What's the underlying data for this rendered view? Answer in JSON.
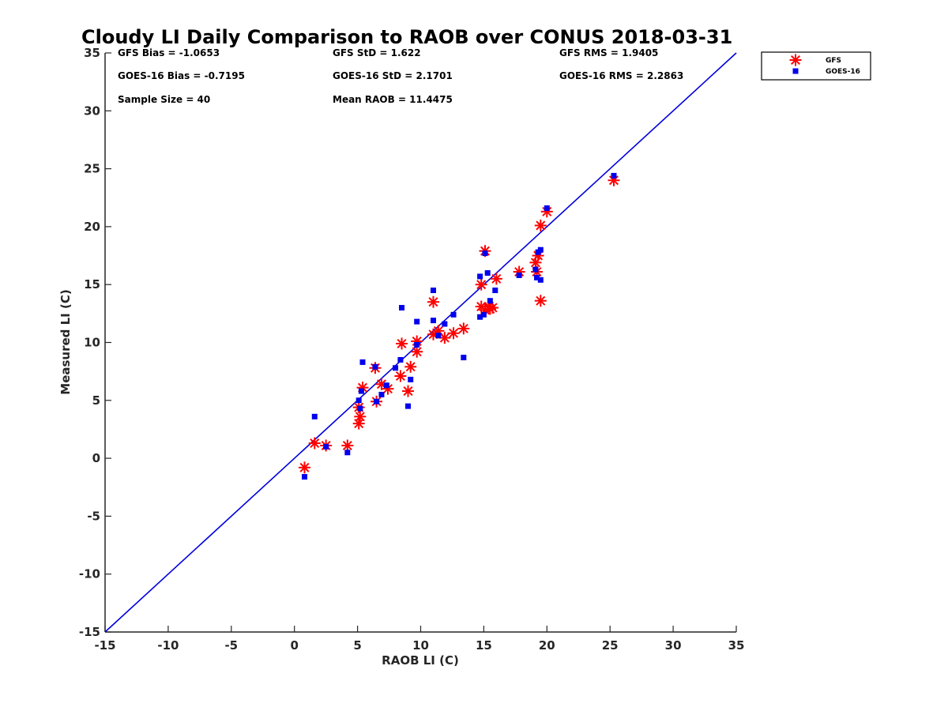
{
  "chart_data": {
    "type": "scatter",
    "title": "Cloudy LI Daily Comparison to RAOB over CONUS 2018-03-31",
    "xlabel": "RAOB LI (C)",
    "ylabel": "Measured LI (C)",
    "xlim": [
      -15,
      35
    ],
    "ylim": [
      -15,
      35
    ],
    "xticks": [
      "-15",
      "-10",
      "-5",
      "0",
      "5",
      "10",
      "15",
      "20",
      "25",
      "30",
      "35"
    ],
    "yticks": [
      "-15",
      "-10",
      "-5",
      "0",
      "5",
      "10",
      "15",
      "20",
      "25",
      "30",
      "35"
    ],
    "grid": false,
    "legend_position": "outside-top-right",
    "reference_line": {
      "from": [
        -15,
        -15
      ],
      "to": [
        35,
        35
      ],
      "color": "#0000dd"
    },
    "stats": [
      "GFS Bias = -1.0653",
      "GFS StD = 1.622",
      "GFS RMS = 1.9405",
      "GOES-16 Bias = -0.7195",
      "GOES-16 StD = 2.1701",
      "GOES-16 RMS = 2.2863",
      "Sample Size = 40",
      "Mean RAOB = 11.4475"
    ],
    "series": [
      {
        "name": "GFS",
        "marker": "asterisk",
        "color": "#ff0000",
        "points": [
          [
            0.8,
            -0.8
          ],
          [
            1.6,
            1.3
          ],
          [
            2.5,
            1.1
          ],
          [
            4.2,
            1.1
          ],
          [
            5.1,
            3.0
          ],
          [
            5.2,
            3.6
          ],
          [
            5.4,
            6.1
          ],
          [
            5.1,
            4.4
          ],
          [
            6.4,
            7.8
          ],
          [
            6.5,
            4.9
          ],
          [
            6.9,
            6.4
          ],
          [
            7.4,
            6.0
          ],
          [
            8.4,
            7.1
          ],
          [
            8.5,
            9.9
          ],
          [
            9.0,
            5.8
          ],
          [
            9.2,
            7.9
          ],
          [
            9.7,
            10.1
          ],
          [
            9.7,
            9.2
          ],
          [
            11.0,
            13.5
          ],
          [
            11.0,
            10.7
          ],
          [
            11.4,
            11.0
          ],
          [
            11.9,
            10.4
          ],
          [
            12.6,
            10.8
          ],
          [
            13.4,
            11.2
          ],
          [
            14.8,
            15.0
          ],
          [
            14.8,
            13.1
          ],
          [
            15.1,
            17.9
          ],
          [
            15.1,
            12.8
          ],
          [
            15.4,
            13.1
          ],
          [
            15.5,
            12.9
          ],
          [
            16.0,
            15.5
          ],
          [
            17.8,
            16.1
          ],
          [
            19.1,
            16.9
          ],
          [
            19.2,
            16.1
          ],
          [
            19.3,
            17.5
          ],
          [
            19.5,
            20.1
          ],
          [
            19.5,
            13.6
          ],
          [
            20.0,
            21.3
          ],
          [
            25.3,
            24.0
          ],
          [
            15.7,
            13.0
          ]
        ]
      },
      {
        "name": "GOES-16",
        "marker": "square",
        "color": "#0000ee",
        "points": [
          [
            0.8,
            -1.6
          ],
          [
            1.6,
            3.6
          ],
          [
            2.5,
            1.0
          ],
          [
            4.2,
            0.5
          ],
          [
            5.1,
            5.0
          ],
          [
            5.2,
            4.3
          ],
          [
            5.4,
            8.3
          ],
          [
            5.3,
            5.8
          ],
          [
            6.4,
            7.9
          ],
          [
            6.5,
            4.9
          ],
          [
            6.9,
            5.5
          ],
          [
            7.3,
            6.3
          ],
          [
            8.0,
            7.8
          ],
          [
            8.4,
            8.5
          ],
          [
            8.5,
            13.0
          ],
          [
            9.0,
            4.5
          ],
          [
            9.2,
            6.8
          ],
          [
            9.7,
            11.8
          ],
          [
            9.7,
            9.8
          ],
          [
            11.0,
            14.5
          ],
          [
            11.0,
            11.9
          ],
          [
            11.4,
            10.6
          ],
          [
            11.9,
            11.6
          ],
          [
            12.6,
            12.4
          ],
          [
            13.4,
            8.7
          ],
          [
            14.7,
            15.7
          ],
          [
            14.7,
            12.2
          ],
          [
            15.1,
            17.7
          ],
          [
            15.0,
            12.4
          ],
          [
            15.3,
            16.0
          ],
          [
            15.5,
            13.6
          ],
          [
            15.9,
            14.5
          ],
          [
            17.8,
            15.8
          ],
          [
            19.1,
            16.3
          ],
          [
            19.2,
            15.6
          ],
          [
            19.3,
            17.8
          ],
          [
            19.5,
            18.0
          ],
          [
            19.5,
            15.4
          ],
          [
            20.0,
            21.6
          ],
          [
            25.3,
            24.4
          ]
        ]
      }
    ]
  }
}
